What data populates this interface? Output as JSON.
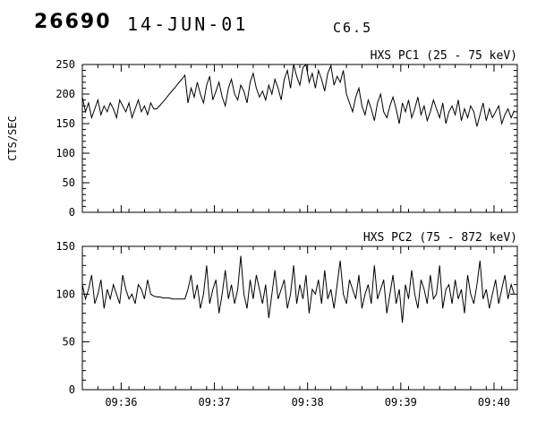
{
  "header": {
    "flare_number": "26690",
    "date": "14-JUN-01",
    "goes_class": "C6.5"
  },
  "chart_data": [
    {
      "type": "line",
      "title": "HXS PC1 (25 - 75 keV)",
      "ylabel": "CTS/SEC",
      "xlabel": "",
      "ylim": [
        0,
        250
      ],
      "yticks": [
        0,
        50,
        100,
        150,
        200,
        250
      ],
      "y_minor": 10,
      "xlim": [
        0,
        280
      ],
      "x_minor": 10,
      "show_x_labels": false,
      "xticks": [
        {
          "t": 25,
          "label": "09:36"
        },
        {
          "t": 85,
          "label": "09:37"
        },
        {
          "t": 145,
          "label": "09:38"
        },
        {
          "t": 205,
          "label": "09:39"
        },
        {
          "t": 265,
          "label": "09:40"
        }
      ],
      "x_start": 0,
      "x_step": 2,
      "values": [
        195,
        170,
        185,
        160,
        175,
        190,
        165,
        180,
        170,
        185,
        175,
        160,
        190,
        180,
        170,
        185,
        160,
        175,
        190,
        170,
        180,
        165,
        185,
        175,
        175,
        181,
        187,
        193,
        200,
        206,
        212,
        219,
        225,
        232,
        185,
        210,
        195,
        220,
        200,
        185,
        215,
        230,
        190,
        205,
        220,
        195,
        180,
        210,
        225,
        200,
        190,
        215,
        205,
        185,
        220,
        235,
        210,
        195,
        205,
        190,
        215,
        200,
        225,
        210,
        190,
        225,
        240,
        210,
        250,
        230,
        215,
        245,
        250,
        220,
        235,
        210,
        240,
        225,
        205,
        235,
        248,
        215,
        230,
        220,
        240,
        200,
        185,
        170,
        195,
        210,
        180,
        165,
        190,
        175,
        155,
        185,
        200,
        170,
        160,
        180,
        195,
        175,
        150,
        185,
        170,
        190,
        160,
        175,
        195,
        165,
        180,
        155,
        170,
        190,
        175,
        160,
        185,
        150,
        170,
        180,
        165,
        190,
        155,
        175,
        160,
        180,
        170,
        145,
        165,
        185,
        155,
        175,
        160,
        170,
        180,
        150,
        165,
        175,
        160,
        172
      ]
    },
    {
      "type": "line",
      "title": "HXS PC2 (75 - 872 keV)",
      "ylabel": "",
      "xlabel": "",
      "ylim": [
        0,
        150
      ],
      "yticks": [
        0,
        50,
        100,
        150
      ],
      "y_minor": 10,
      "xlim": [
        0,
        280
      ],
      "x_minor": 10,
      "show_x_labels": true,
      "xticks": [
        {
          "t": 25,
          "label": "09:36"
        },
        {
          "t": 85,
          "label": "09:37"
        },
        {
          "t": 145,
          "label": "09:38"
        },
        {
          "t": 205,
          "label": "09:39"
        },
        {
          "t": 265,
          "label": "09:40"
        }
      ],
      "x_start": 0,
      "x_step": 2,
      "values": [
        110,
        95,
        105,
        120,
        90,
        100,
        115,
        85,
        105,
        95,
        110,
        100,
        90,
        120,
        105,
        95,
        100,
        90,
        110,
        105,
        95,
        115,
        100,
        98,
        97,
        97,
        96,
        96,
        96,
        95,
        95,
        95,
        95,
        95,
        105,
        120,
        95,
        110,
        85,
        100,
        130,
        90,
        105,
        115,
        80,
        100,
        125,
        95,
        110,
        90,
        105,
        140,
        100,
        85,
        115,
        95,
        120,
        105,
        90,
        110,
        75,
        100,
        125,
        95,
        105,
        115,
        85,
        100,
        130,
        90,
        110,
        95,
        120,
        80,
        105,
        100,
        115,
        90,
        125,
        95,
        105,
        85,
        110,
        135,
        100,
        90,
        115,
        105,
        95,
        120,
        85,
        100,
        110,
        90,
        130,
        95,
        105,
        115,
        80,
        100,
        120,
        90,
        105,
        70,
        110,
        95,
        125,
        100,
        85,
        115,
        105,
        90,
        120,
        95,
        100,
        130,
        85,
        105,
        110,
        90,
        115,
        95,
        105,
        80,
        120,
        100,
        90,
        110,
        135,
        95,
        105,
        85,
        100,
        115,
        90,
        105,
        120,
        95,
        110,
        100
      ]
    }
  ]
}
